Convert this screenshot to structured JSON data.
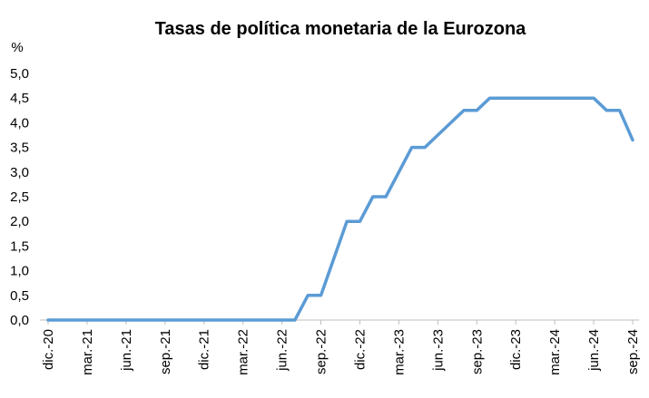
{
  "chart_data": {
    "type": "line",
    "title": "Tasas de política monetaria de la Eurozona",
    "ylabel": "%",
    "xlabel": "",
    "ylim": [
      0,
      5
    ],
    "y_ticks": [
      "0,0",
      "0,5",
      "1,0",
      "1,5",
      "2,0",
      "2,5",
      "3,0",
      "3,5",
      "4,0",
      "4,5",
      "5,0"
    ],
    "x_tick_labels": [
      "dic.-20",
      "mar.-21",
      "jun.-21",
      "sep.-21",
      "dic.-21",
      "mar.-22",
      "jun.-22",
      "sep.-22",
      "dic.-22",
      "mar.-23",
      "jun.-23",
      "sep.-23",
      "dic.-23",
      "mar.-24",
      "jun.-24",
      "sep.-24"
    ],
    "grid": false,
    "line_color": "#5B9BD5",
    "series": [
      {
        "x": [
          "dic.-20",
          "ene.-21",
          "feb.-21",
          "mar.-21",
          "abr.-21",
          "may.-21",
          "jun.-21",
          "jul.-21",
          "ago.-21",
          "sep.-21",
          "oct.-21",
          "nov.-21",
          "dic.-21",
          "ene.-22",
          "feb.-22",
          "mar.-22",
          "abr.-22",
          "may.-22",
          "jun.-22",
          "jul.-22",
          "ago.-22",
          "sep.-22",
          "oct.-22",
          "nov.-22",
          "dic.-22",
          "ene.-23",
          "feb.-23",
          "mar.-23",
          "abr.-23",
          "may.-23",
          "jun.-23",
          "jul.-23",
          "ago.-23",
          "sep.-23",
          "oct.-23",
          "nov.-23",
          "dic.-23",
          "ene.-24",
          "feb.-24",
          "mar.-24",
          "abr.-24",
          "may.-24",
          "jun.-24",
          "jul.-24",
          "ago.-24",
          "sep.-24"
        ],
        "values": [
          0,
          0,
          0,
          0,
          0,
          0,
          0,
          0,
          0,
          0,
          0,
          0,
          0,
          0,
          0,
          0,
          0,
          0,
          0,
          0,
          0.5,
          0.5,
          1.25,
          2.0,
          2.0,
          2.5,
          2.5,
          3.0,
          3.5,
          3.5,
          3.75,
          4.0,
          4.25,
          4.25,
          4.5,
          4.5,
          4.5,
          4.5,
          4.5,
          4.5,
          4.5,
          4.5,
          4.5,
          4.25,
          4.25,
          3.65
        ]
      }
    ]
  }
}
